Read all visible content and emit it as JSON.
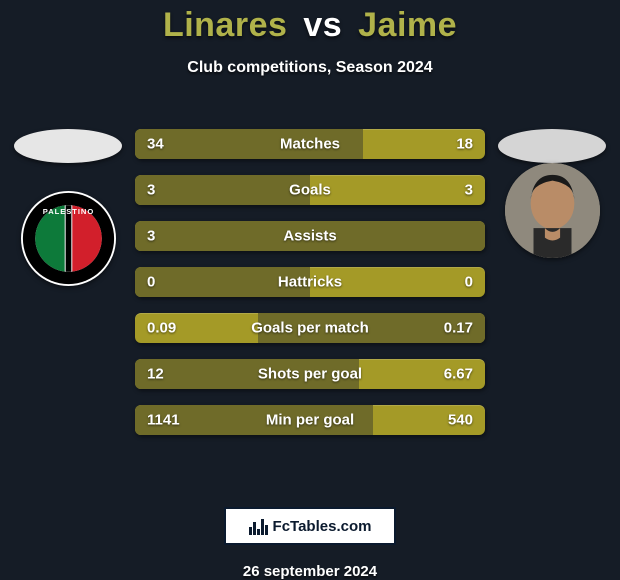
{
  "title": {
    "player1": "Linares",
    "vs": "vs",
    "player2": "Jaime"
  },
  "subtitle": "Club competitions, Season 2024",
  "colors": {
    "background": "#151c26",
    "bar_base": "#a49a27",
    "bar_fill": "#6f6b29",
    "title_player": "#b0b24a",
    "text": "#ffffff",
    "left_photo_bg": "#e6e6e6",
    "right_photo_bg": "#d5d5d5",
    "club_logo_bg": "#ffffff"
  },
  "stats": [
    {
      "label": "Matches",
      "left_val": "34",
      "right_val": "18",
      "left_pct": 65,
      "right_pct": 35
    },
    {
      "label": "Goals",
      "left_val": "3",
      "right_val": "3",
      "left_pct": 50,
      "right_pct": 50
    },
    {
      "label": "Assists",
      "left_val": "3",
      "right_val": "",
      "left_pct": 100,
      "right_pct": 0
    },
    {
      "label": "Hattricks",
      "left_val": "0",
      "right_val": "0",
      "left_pct": 50,
      "right_pct": 50
    },
    {
      "label": "Goals per match",
      "left_val": "0.09",
      "right_val": "0.17",
      "left_pct": 35,
      "right_pct": 65
    },
    {
      "label": "Shots per goal",
      "left_val": "12",
      "right_val": "6.67",
      "left_pct": 64,
      "right_pct": 36
    },
    {
      "label": "Min per goal",
      "left_val": "1141",
      "right_val": "540",
      "left_pct": 68,
      "right_pct": 32
    }
  ],
  "footer_brand": "FcTables.com",
  "date": "26 september 2024",
  "club_logo": {
    "name": "PALESTINO"
  }
}
